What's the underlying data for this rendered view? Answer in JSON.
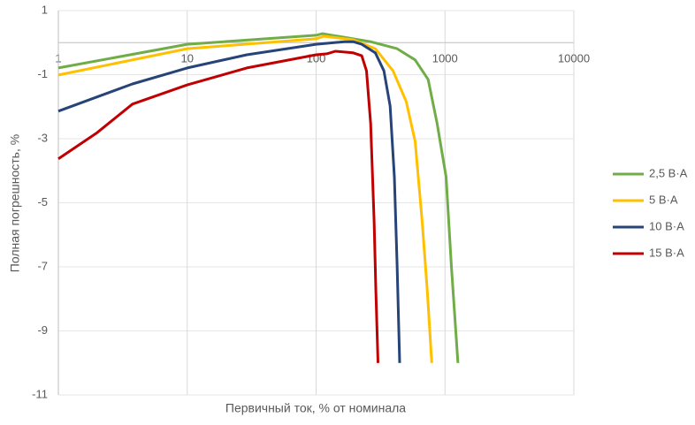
{
  "chart_data": {
    "type": "line",
    "xlabel": "Первичный ток, % от номинала",
    "ylabel": "Полная погрешность, %",
    "xscale": "log",
    "xlim": [
      1,
      10000
    ],
    "xticks": [
      1,
      10,
      100,
      1000,
      10000
    ],
    "ylim": [
      -11,
      1
    ],
    "yticks": [
      1,
      -1,
      -3,
      -5,
      -7,
      -9,
      -11
    ],
    "grid": true,
    "legend": "right",
    "series": [
      {
        "name": "2,5 В·А",
        "color": "#70ad47",
        "x": [
          1,
          10,
          100,
          112,
          265,
          425,
          587,
          740,
          870,
          1020,
          1120,
          1260
        ],
        "values": [
          -0.79,
          -0.05,
          0.23,
          0.28,
          0.03,
          -0.19,
          -0.54,
          -1.15,
          -2.53,
          -4.19,
          -6.94,
          -10
        ]
      },
      {
        "name": "5 В·А",
        "color": "#ffc000",
        "x": [
          1,
          10,
          100,
          115,
          194,
          288,
          395,
          500,
          587,
          665,
          730,
          790
        ],
        "values": [
          -1.01,
          -0.19,
          0.12,
          0.2,
          0.09,
          -0.19,
          -0.88,
          -1.84,
          -3.08,
          -5.57,
          -7.77,
          -10
        ]
      },
      {
        "name": "10 В·А",
        "color": "#264478",
        "x": [
          1,
          3.76,
          10,
          29,
          100,
          166,
          194,
          226,
          288,
          336,
          375,
          405,
          425,
          445
        ],
        "values": [
          -2.14,
          -1.29,
          -0.79,
          -0.38,
          -0.05,
          0.03,
          0.03,
          -0.05,
          -0.32,
          -0.88,
          -1.98,
          -4.19,
          -6.94,
          -10
        ]
      },
      {
        "name": "15 В·А",
        "color": "#c00000",
        "x": [
          1,
          2,
          3.76,
          10,
          29,
          100,
          121,
          141,
          194,
          226,
          246,
          265,
          282,
          291,
          302
        ],
        "values": [
          -3.63,
          -2.81,
          -1.92,
          -1.32,
          -0.79,
          -0.38,
          -0.35,
          -0.27,
          -0.32,
          -0.41,
          -0.88,
          -2.53,
          -5.57,
          -7.77,
          -10
        ]
      }
    ]
  }
}
